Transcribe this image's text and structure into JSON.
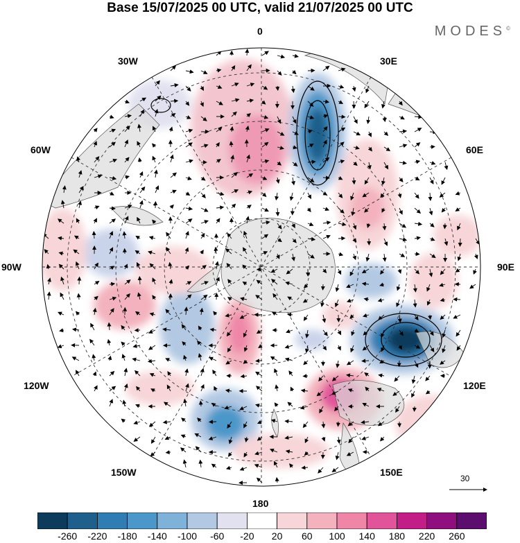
{
  "title": "Base 15/07/2025 00 UTC, valid 21/07/2025 00 UTC",
  "brand": "MODES",
  "brand_mark": "©",
  "longitude_labels": {
    "north": "0",
    "ne": "30E",
    "nw": "30W",
    "e60": "60E",
    "w60": "60W",
    "e90": "90E",
    "w90": "90W",
    "e120": "120E",
    "w120": "120W",
    "e150": "150E",
    "w150": "150W",
    "south": "180"
  },
  "reference_vector": {
    "label": "30"
  },
  "colorbar": {
    "tick_labels": [
      "-260",
      "-220",
      "-180",
      "-140",
      "-100",
      "-60",
      "-20",
      "20",
      "60",
      "100",
      "140",
      "180",
      "220",
      "260"
    ],
    "colors": [
      "#0d3b5c",
      "#1f5f8b",
      "#2f7db3",
      "#4b97c9",
      "#7fb2d9",
      "#b3c9e3",
      "#e1e1f0",
      "#ffffff",
      "#f7d5d8",
      "#f3b2bd",
      "#ef86a8",
      "#e2549a",
      "#c31e88",
      "#8f0f7e",
      "#5b0e6e"
    ]
  }
}
